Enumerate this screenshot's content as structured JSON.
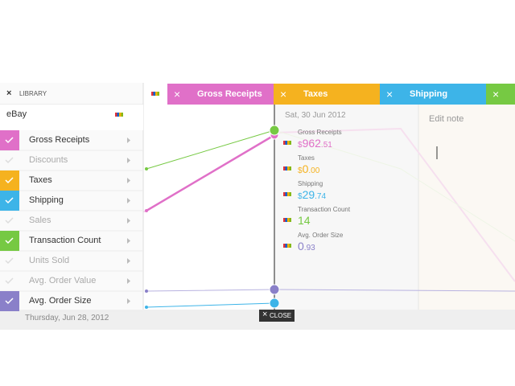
{
  "library": {
    "close_icon": "×",
    "title": "LIBRARY"
  },
  "source": "eBay",
  "metrics": [
    {
      "label": "Gross Receipts",
      "checked": true,
      "color": "#e070c8"
    },
    {
      "label": "Discounts",
      "checked": false
    },
    {
      "label": "Taxes",
      "checked": true,
      "color": "#f5b21f"
    },
    {
      "label": "Shipping",
      "checked": true,
      "color": "#3db4e8"
    },
    {
      "label": "Sales",
      "checked": false
    },
    {
      "label": "Transaction Count",
      "checked": true,
      "color": "#76c943"
    },
    {
      "label": "Units Sold",
      "checked": false
    },
    {
      "label": "Avg. Order Value",
      "checked": false
    },
    {
      "label": "Avg. Order Size",
      "checked": true,
      "color": "#8a80c9"
    }
  ],
  "tabs": [
    {
      "close_icon": "×",
      "label": "Gross Receipts",
      "color": "#e070c8"
    },
    {
      "close_icon": "×",
      "label": "Taxes",
      "color": "#f5b21f"
    },
    {
      "close_icon": "×",
      "label": "Shipping",
      "color": "#3db4e8"
    },
    {
      "close_icon": "×",
      "color": "#76c943"
    }
  ],
  "tooltip": {
    "date": "Sat, 30 Jun 2012",
    "items": [
      {
        "label": "Gross Receipts",
        "currency": "$",
        "whole": "962",
        "cents": ".51",
        "color": "#e070c8"
      },
      {
        "label": "Taxes",
        "currency": "$",
        "whole": "0",
        "cents": ".00",
        "color": "#f5b21f"
      },
      {
        "label": "Shipping",
        "currency": "$",
        "whole": "29",
        "cents": ".74",
        "color": "#3db4e8"
      },
      {
        "label": "Transaction Count",
        "whole": "14",
        "color": "#76c943"
      },
      {
        "label": "Avg. Order Size",
        "whole": "0",
        "cents": ".93",
        "color": "#8a80c9"
      }
    ]
  },
  "note": {
    "placeholder": "Edit note"
  },
  "footer": {
    "date": "Thursday, Jun 28, 2012",
    "close_icon": "×",
    "close": "CLOSE"
  }
}
